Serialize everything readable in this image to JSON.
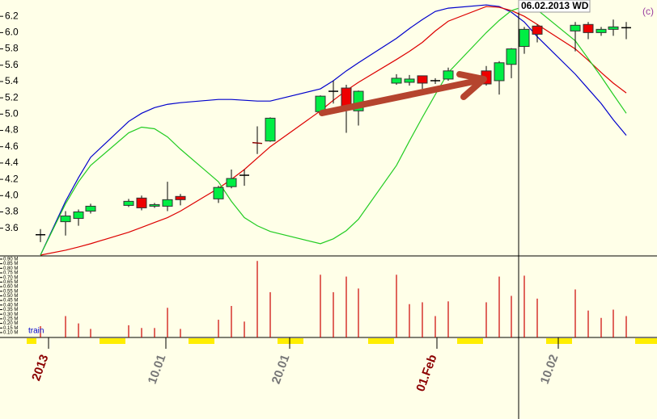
{
  "chart_data": {
    "type": "candlestick",
    "annotation": "06.02.2013 WD",
    "copyright": "(c)",
    "date_labels": [
      "2013",
      "10.01",
      "20.01",
      "01.Feb",
      "10.02"
    ],
    "open": [
      3.52,
      3.68,
      3.72,
      3.81,
      3.88,
      3.97,
      3.87,
      3.87,
      3.99,
      3.96,
      4.11,
      4.25,
      4.65,
      4.67,
      5.03,
      5.28,
      5.32,
      5.04,
      5.38,
      5.39,
      5.47,
      5.41,
      5.43,
      5.53,
      5.41,
      5.61,
      5.83,
      6.08,
      6.02,
      6.1,
      6.0,
      6.04,
      6.06
    ],
    "high": [
      3.59,
      3.81,
      3.83,
      3.9,
      3.96,
      4.0,
      3.91,
      4.17,
      4.02,
      4.12,
      4.32,
      4.32,
      4.85,
      4.96,
      5.23,
      5.41,
      5.36,
      5.29,
      5.49,
      5.48,
      5.47,
      5.44,
      5.57,
      5.59,
      5.65,
      5.81,
      6.07,
      6.1,
      6.13,
      6.13,
      6.07,
      6.16,
      6.13
    ],
    "low": [
      3.43,
      3.51,
      3.63,
      3.78,
      3.86,
      3.82,
      3.85,
      3.81,
      3.88,
      3.91,
      4.09,
      4.12,
      4.51,
      4.66,
      5.01,
      5.13,
      4.77,
      4.86,
      5.36,
      5.35,
      5.31,
      5.37,
      5.41,
      5.35,
      5.24,
      5.44,
      5.74,
      5.88,
      5.77,
      5.92,
      5.96,
      5.96,
      5.92
    ],
    "close": [
      3.52,
      3.75,
      3.8,
      3.87,
      3.93,
      3.85,
      3.89,
      3.95,
      3.95,
      4.1,
      4.21,
      4.25,
      4.64,
      4.95,
      5.22,
      5.28,
      5.09,
      5.28,
      5.44,
      5.43,
      5.38,
      5.41,
      5.53,
      5.37,
      5.63,
      5.8,
      6.04,
      5.98,
      6.09,
      6.0,
      6.04,
      6.07,
      6.06
    ],
    "up_color": "#00ee44",
    "down_color": "#ee0000",
    "ylim": [
      3.27,
      6.4
    ],
    "yticks": [
      3.6,
      3.8,
      {
        "value": 4,
        "label": "4.0"
      },
      4.2,
      4.4,
      4.6,
      4.8,
      {
        "value": 5,
        "label": "5.0"
      },
      5.2,
      5.4,
      5.6,
      5.8,
      {
        "value": 6,
        "label": "6.0"
      },
      6.2
    ],
    "series": [
      {
        "color": "#0000cc",
        "values": [
          3.27,
          3.93,
          4.22,
          4.47,
          4.91,
          5.01,
          5.08,
          5.12,
          5.14,
          5.18,
          5.18,
          5.17,
          5.16,
          5.16,
          5.31,
          5.41,
          5.53,
          5.63,
          5.93,
          6.05,
          6.16,
          6.26,
          6.3,
          6.34,
          6.32,
          6.25,
          6.13,
          5.95,
          5.49,
          5.31,
          5.13,
          4.93,
          4.74
        ]
      },
      {
        "color": "#dd0000",
        "values": [
          3.27,
          3.33,
          3.37,
          3.41,
          3.55,
          3.61,
          3.67,
          3.73,
          3.81,
          4.09,
          4.2,
          4.32,
          4.46,
          4.6,
          5.04,
          5.17,
          5.29,
          5.39,
          5.67,
          5.77,
          5.88,
          6.02,
          6.14,
          6.32,
          6.31,
          6.27,
          6.2,
          6.1,
          5.8,
          5.66,
          5.51,
          5.38,
          5.26
        ]
      },
      {
        "color": "#22cc22",
        "values": [
          3.27,
          3.9,
          4.17,
          4.37,
          4.77,
          4.84,
          4.82,
          4.72,
          4.57,
          4.17,
          3.93,
          3.73,
          3.63,
          3.56,
          3.41,
          3.47,
          3.57,
          3.71,
          4.37,
          4.67,
          4.96,
          5.24,
          5.51,
          6.0,
          6.15,
          6.27,
          6.32,
          6.28,
          5.9,
          5.68,
          5.46,
          5.24,
          5.01
        ]
      }
    ],
    "volume": {
      "name": "train",
      "color": "#cc0000",
      "values": [
        0.17,
        0.28,
        0.2,
        0.14,
        0.18,
        0.15,
        0.15,
        0.37,
        0.14,
        0.24,
        0.39,
        0.22,
        0.88,
        0.54,
        0.73,
        0.54,
        0.71,
        0.58,
        0.73,
        0.41,
        0.43,
        0.28,
        0.44,
        0.43,
        0.71,
        0.5,
        0.72,
        0.47,
        0.57,
        0.34,
        0.26,
        0.35,
        0.28
      ],
      "ylim": [
        0.047,
        0.926
      ],
      "yticks": [
        {
          "value": 0.1,
          "label": "0.10 M"
        },
        {
          "value": 0.15,
          "label": "0.15 M"
        },
        {
          "value": 0.2,
          "label": "0.20 M"
        },
        {
          "value": 0.25,
          "label": "0.25 M"
        },
        {
          "value": 0.3,
          "label": "0.30 M"
        },
        {
          "value": 0.35,
          "label": "0.35 M"
        },
        {
          "value": 0.4,
          "label": "0.40 M"
        },
        {
          "value": 0.45,
          "label": "0.45 M"
        },
        {
          "value": 0.5,
          "label": "0.50 M"
        },
        {
          "value": 0.55,
          "label": "0.55 M"
        },
        {
          "value": 0.6,
          "label": "0.60 M"
        },
        {
          "value": 0.65,
          "label": "0.65 M"
        },
        {
          "value": 0.7,
          "label": "0.70 M"
        },
        {
          "value": 0.75,
          "label": "0.75 M"
        },
        {
          "value": 0.8,
          "label": "0.80 M"
        },
        {
          "value": 0.85,
          "label": "0.85 M"
        },
        {
          "value": 0.9,
          "label": "0.90 M"
        }
      ]
    }
  }
}
